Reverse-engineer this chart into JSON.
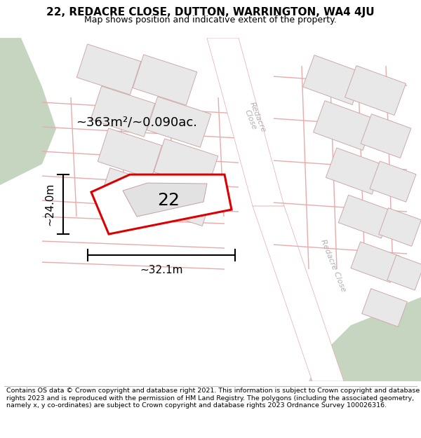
{
  "title": "22, REDACRE CLOSE, DUTTON, WARRINGTON, WA4 4JU",
  "subtitle": "Map shows position and indicative extent of the property.",
  "footer": "Contains OS data © Crown copyright and database right 2021. This information is subject to Crown copyright and database rights 2023 and is reproduced with the permission of HM Land Registry. The polygons (including the associated geometry, namely x, y co-ordinates) are subject to Crown copyright and database rights 2023 Ordnance Survey 100026316.",
  "map_bg": "#f5f5f5",
  "green_color": "#c5d5c0",
  "road_line_color": "#e8aaaa",
  "building_fill": "#e8e8e8",
  "building_edge": "#ccaaaa",
  "plot_color": "#dd0000",
  "plot_lw": 2.2,
  "plot_label": "22",
  "plot_label_fontsize": 18,
  "area_label": "~363m²/~0.090ac.",
  "area_fontsize": 13,
  "width_label": "~32.1m",
  "height_label": "~24.0m",
  "dim_fontsize": 11,
  "title_fontsize": 11,
  "subtitle_fontsize": 9,
  "footer_fontsize": 6.8,
  "road_label_color": "#b0b0b0",
  "road_label_fontsize": 8
}
